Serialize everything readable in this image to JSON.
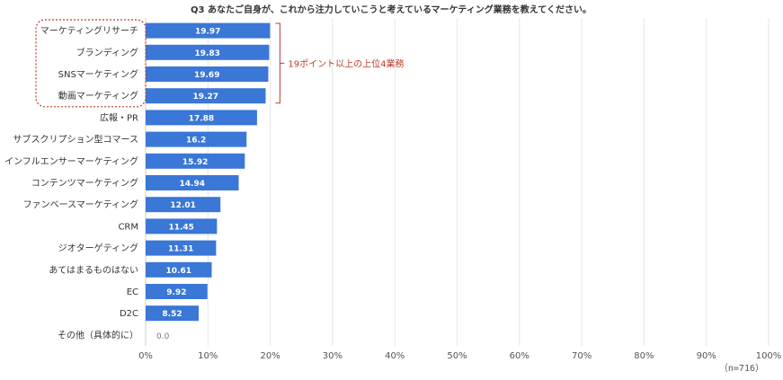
{
  "chart_data": {
    "type": "bar",
    "orientation": "horizontal",
    "title": "Q3 あなたご自身が、これから注力していこうと考えているマーケティング業務を教えてください。",
    "categories": [
      "マーケティングリサーチ",
      "ブランディング",
      "SNSマーケティング",
      "動画マーケティング",
      "広報・PR",
      "サブスクリプション型コマース",
      "インフルエンサーマーケティング",
      "コンテンツマーケティング",
      "ファンベースマーケティング",
      "CRM",
      "ジオターゲティング",
      "あてはまるものはない",
      "EC",
      "D2C",
      "その他（具体的に）"
    ],
    "values": [
      19.97,
      19.83,
      19.69,
      19.27,
      17.88,
      16.2,
      15.92,
      14.94,
      12.01,
      11.45,
      11.31,
      10.61,
      9.92,
      8.52,
      0.0
    ],
    "value_labels": [
      "19.97",
      "19.83",
      "19.69",
      "19.27",
      "17.88",
      "16.2",
      "15.92",
      "14.94",
      "12.01",
      "11.45",
      "11.31",
      "10.61",
      "9.92",
      "8.52",
      "0.0"
    ],
    "xlim": [
      0,
      100
    ],
    "xticks": [
      "0%",
      "10%",
      "20%",
      "30%",
      "40%",
      "50%",
      "60%",
      "70%",
      "80%",
      "90%",
      "100%"
    ],
    "xlabel": "",
    "ylabel": "",
    "grid": true,
    "note": "（n=716）",
    "annotation": {
      "text": "19ポイント以上の上位4業務",
      "highlight_count": 4
    },
    "colors": {
      "bar": "#3a77d6",
      "grid": "#e6e6e6",
      "highlight": "#c0392b"
    }
  }
}
